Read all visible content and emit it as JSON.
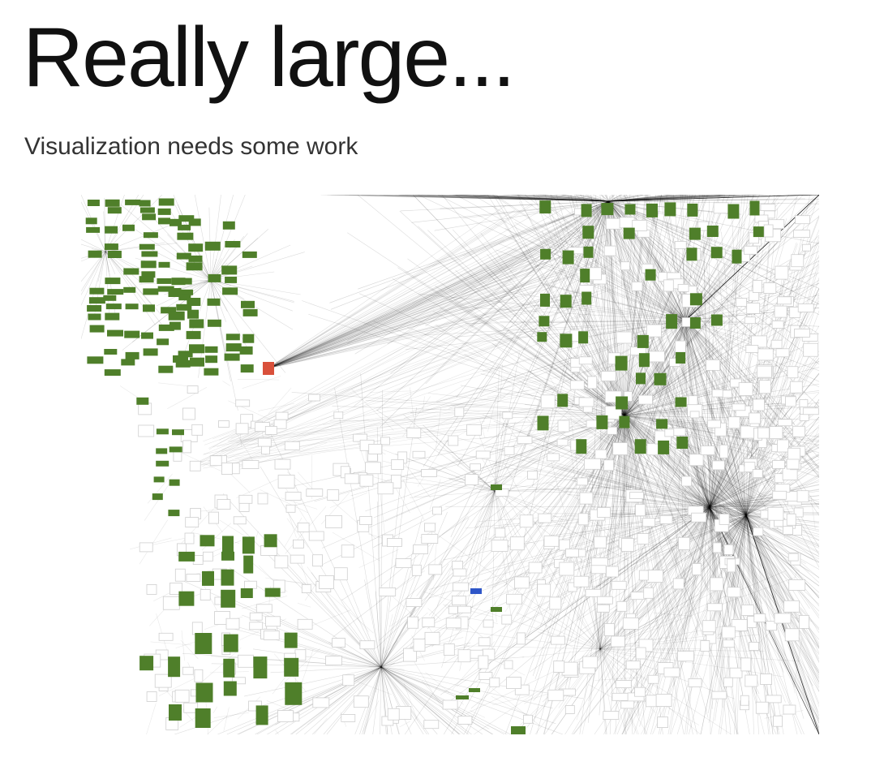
{
  "slide": {
    "title": "Really large...",
    "subtitle": "Visualization needs some work"
  },
  "graph": {
    "kind": "network-graph",
    "node_colors": {
      "highlight": "#4f7f2a",
      "default_fill": "#ffffff",
      "default_stroke": "#cfcfcf",
      "red_marker": "#d9503b",
      "blue_marker": "#2e56c8"
    },
    "edge_color": "#000000",
    "node_categories": [
      "highlight",
      "default",
      "red_marker",
      "blue_marker"
    ]
  }
}
